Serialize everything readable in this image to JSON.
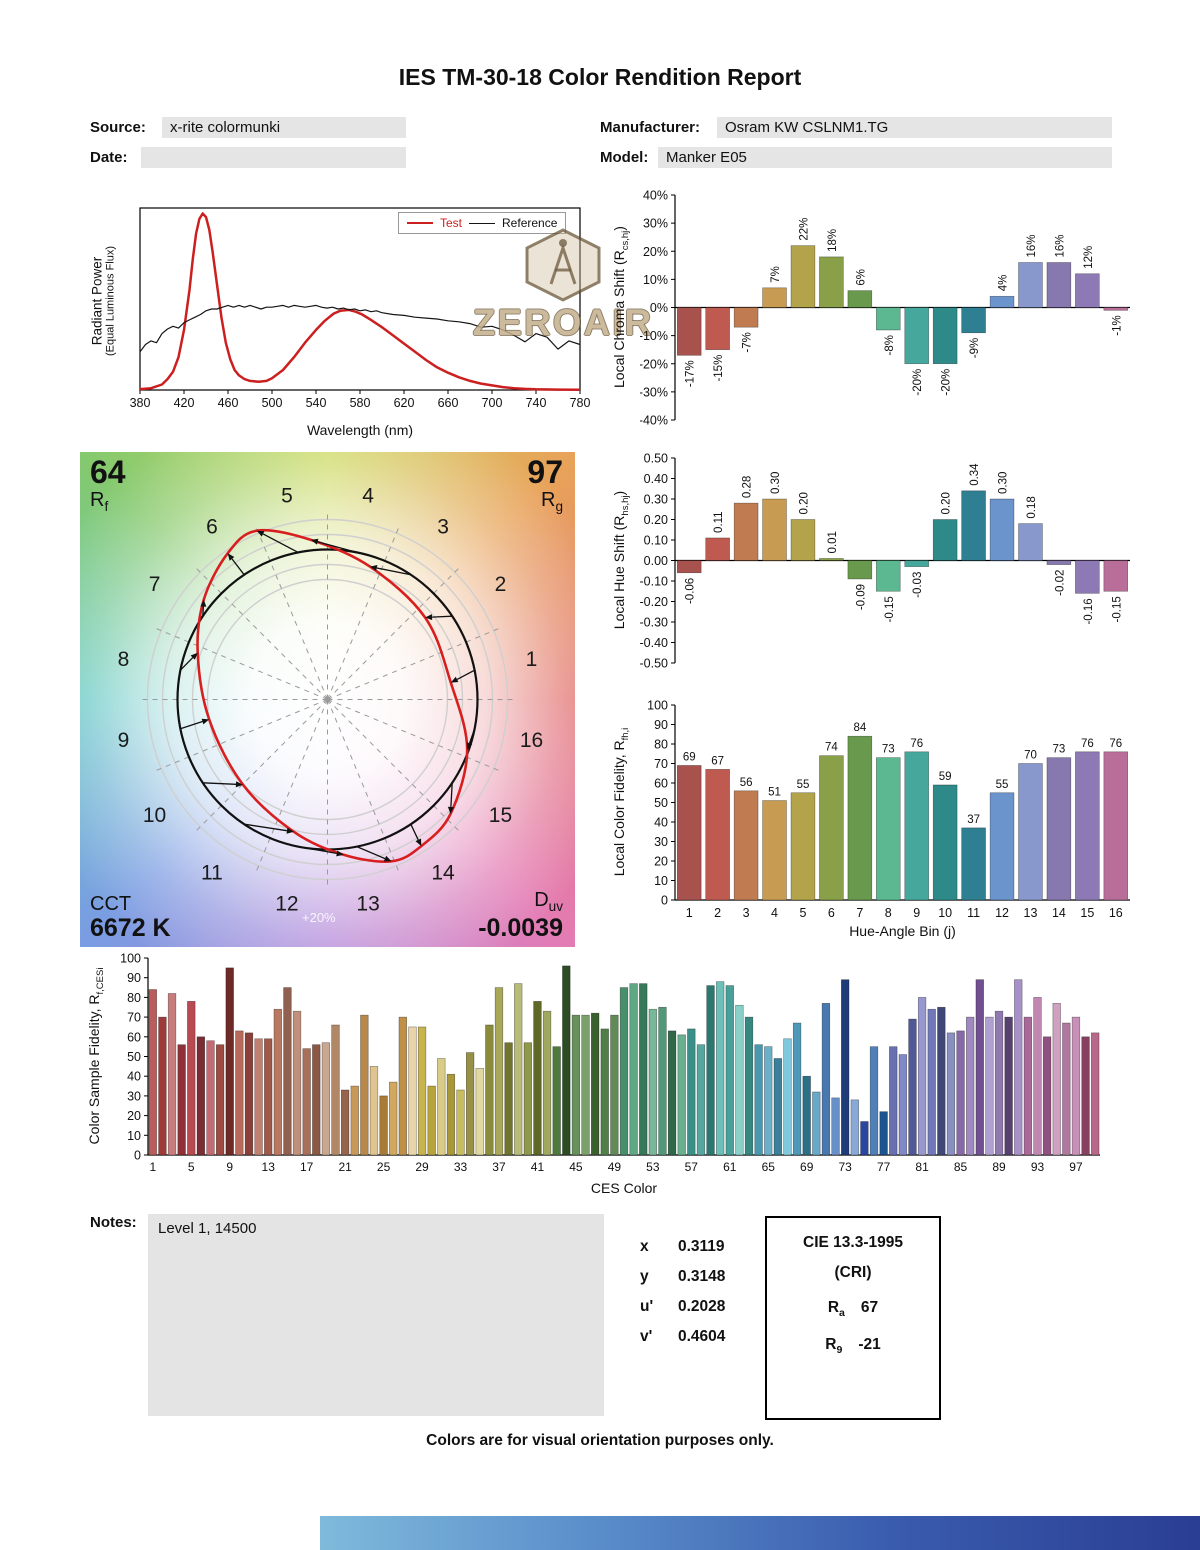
{
  "report": {
    "title": "IES TM-30-18 Color Rendition Report",
    "fields": {
      "source_label": "Source:",
      "source_value": "x-rite colormunki",
      "date_label": "Date:",
      "date_value": "",
      "manufacturer_label": "Manufacturer:",
      "manufacturer_value": "Osram KW CSLNM1.TG",
      "model_label": "Model:",
      "model_value": "Manker E05"
    },
    "notes_label": "Notes:",
    "notes_value": "Level 1, 14500",
    "watermark_text": "ZEROAIR",
    "footer": "Colors are for visual orientation purposes only."
  },
  "cvg": {
    "rf_value": "64",
    "rf_label_parts": [
      "R",
      "f"
    ],
    "rg_value": "97",
    "rg_label_parts": [
      "R",
      "g"
    ],
    "cct_label": "CCT",
    "cct_value": "6672 K",
    "duv_label_parts": [
      "D",
      "uv"
    ],
    "duv_value": "-0.0039",
    "ring_label": "+20%",
    "bin_numbers": [
      1,
      2,
      3,
      4,
      5,
      6,
      7,
      8,
      9,
      10,
      11,
      12,
      13,
      14,
      15,
      16
    ]
  },
  "chromaticity": {
    "rows": [
      {
        "label": "x",
        "value": "0.3119"
      },
      {
        "label": "y",
        "value": "0.3148"
      },
      {
        "label": "u'",
        "value": "0.2028"
      },
      {
        "label": "v'",
        "value": "0.4604"
      }
    ]
  },
  "cri": {
    "title": "CIE 13.3-1995",
    "subtitle": "(CRI)",
    "ra_label_parts": [
      "R",
      "a"
    ],
    "ra_value": "67",
    "r9_label_parts": [
      "R",
      "9"
    ],
    "r9_value": "-21"
  },
  "hue_bin_colors": [
    "#a8524e",
    "#bf5a50",
    "#c07c50",
    "#c79c52",
    "#b3a34b",
    "#8aa048",
    "#69994c",
    "#5cb890",
    "#46a89c",
    "#2e8a88",
    "#2f7f93",
    "#6b93cc",
    "#8898cc",
    "#8878b0",
    "#8d7ab5",
    "#b86e99"
  ],
  "chart_data": [
    {
      "type": "line",
      "name": "spectral-power-distribution",
      "xlabel": "Wavelength (nm)",
      "ylabel_lines": [
        "Radiant Power",
        "(Equal Luminous Flux)"
      ],
      "xlim": [
        380,
        780
      ],
      "ylim": [
        0,
        1
      ],
      "x_ticks": [
        380,
        420,
        460,
        500,
        540,
        580,
        620,
        660,
        700,
        740,
        780
      ],
      "legend_position": "top-right",
      "series": [
        {
          "name": "Test",
          "color": "#cc2020",
          "width": 2.5,
          "points": [
            [
              380,
              0.005
            ],
            [
              390,
              0.01
            ],
            [
              400,
              0.03
            ],
            [
              405,
              0.06
            ],
            [
              410,
              0.1
            ],
            [
              415,
              0.18
            ],
            [
              420,
              0.33
            ],
            [
              425,
              0.55
            ],
            [
              428,
              0.72
            ],
            [
              431,
              0.86
            ],
            [
              434,
              0.94
            ],
            [
              437,
              0.97
            ],
            [
              440,
              0.95
            ],
            [
              443,
              0.88
            ],
            [
              446,
              0.76
            ],
            [
              450,
              0.58
            ],
            [
              454,
              0.4
            ],
            [
              458,
              0.26
            ],
            [
              462,
              0.17
            ],
            [
              466,
              0.11
            ],
            [
              470,
              0.08
            ],
            [
              475,
              0.06
            ],
            [
              480,
              0.05
            ],
            [
              488,
              0.045
            ],
            [
              495,
              0.05
            ],
            [
              500,
              0.065
            ],
            [
              510,
              0.11
            ],
            [
              520,
              0.18
            ],
            [
              530,
              0.26
            ],
            [
              540,
              0.33
            ],
            [
              548,
              0.38
            ],
            [
              556,
              0.42
            ],
            [
              562,
              0.435
            ],
            [
              570,
              0.44
            ],
            [
              576,
              0.43
            ],
            [
              582,
              0.415
            ],
            [
              590,
              0.385
            ],
            [
              600,
              0.345
            ],
            [
              610,
              0.3
            ],
            [
              620,
              0.255
            ],
            [
              630,
              0.21
            ],
            [
              640,
              0.165
            ],
            [
              650,
              0.125
            ],
            [
              660,
              0.095
            ],
            [
              670,
              0.07
            ],
            [
              680,
              0.05
            ],
            [
              690,
              0.035
            ],
            [
              700,
              0.025
            ],
            [
              710,
              0.016
            ],
            [
              720,
              0.01
            ],
            [
              730,
              0.006
            ],
            [
              740,
              0.004
            ],
            [
              760,
              0.002
            ],
            [
              780,
              0.001
            ]
          ]
        },
        {
          "name": "Reference",
          "color": "#151515",
          "width": 1.2,
          "points": [
            [
              380,
              0.21
            ],
            [
              385,
              0.25
            ],
            [
              390,
              0.27
            ],
            [
              395,
              0.26
            ],
            [
              400,
              0.31
            ],
            [
              405,
              0.335
            ],
            [
              410,
              0.35
            ],
            [
              415,
              0.34
            ],
            [
              420,
              0.37
            ],
            [
              425,
              0.385
            ],
            [
              430,
              0.4
            ],
            [
              435,
              0.415
            ],
            [
              440,
              0.435
            ],
            [
              445,
              0.445
            ],
            [
              450,
              0.445
            ],
            [
              455,
              0.455
            ],
            [
              460,
              0.465
            ],
            [
              465,
              0.455
            ],
            [
              470,
              0.465
            ],
            [
              475,
              0.455
            ],
            [
              480,
              0.465
            ],
            [
              485,
              0.455
            ],
            [
              490,
              0.445
            ],
            [
              495,
              0.455
            ],
            [
              500,
              0.455
            ],
            [
              505,
              0.46
            ],
            [
              510,
              0.465
            ],
            [
              515,
              0.455
            ],
            [
              520,
              0.465
            ],
            [
              525,
              0.46
            ],
            [
              530,
              0.455
            ],
            [
              535,
              0.46
            ],
            [
              540,
              0.465
            ],
            [
              545,
              0.455
            ],
            [
              550,
              0.45
            ],
            [
              555,
              0.455
            ],
            [
              560,
              0.445
            ],
            [
              565,
              0.45
            ],
            [
              570,
              0.44
            ],
            [
              575,
              0.445
            ],
            [
              580,
              0.435
            ],
            [
              585,
              0.44
            ],
            [
              590,
              0.43
            ],
            [
              595,
              0.435
            ],
            [
              600,
              0.425
            ],
            [
              610,
              0.415
            ],
            [
              620,
              0.41
            ],
            [
              630,
              0.4
            ],
            [
              640,
              0.395
            ],
            [
              650,
              0.39
            ],
            [
              660,
              0.38
            ],
            [
              670,
              0.375
            ],
            [
              680,
              0.365
            ],
            [
              690,
              0.345
            ],
            [
              700,
              0.35
            ],
            [
              710,
              0.33
            ],
            [
              720,
              0.3
            ],
            [
              730,
              0.265
            ],
            [
              740,
              0.31
            ],
            [
              750,
              0.29
            ],
            [
              760,
              0.225
            ],
            [
              770,
              0.27
            ],
            [
              780,
              0.25
            ]
          ]
        }
      ]
    },
    {
      "type": "bar",
      "name": "local-chroma-shift",
      "ylabel_parts": [
        "Local Chroma Shift (R",
        "cs,hj",
        ")"
      ],
      "ylim": [
        -40,
        40
      ],
      "ytick_step": 10,
      "ytick_suffix": "%",
      "categories": [
        1,
        2,
        3,
        4,
        5,
        6,
        7,
        8,
        9,
        10,
        11,
        12,
        13,
        14,
        15,
        16
      ],
      "values": [
        -17,
        -15,
        -7,
        7,
        22,
        18,
        6,
        -8,
        -20,
        -20,
        -9,
        4,
        16,
        16,
        12,
        -1
      ],
      "value_labels": [
        "-17%",
        "-15%",
        "-7%",
        "7%",
        "22%",
        "18%",
        "6%",
        "-8%",
        "-20%",
        "-20%",
        "-9%",
        "4%",
        "16%",
        "16%",
        "12%",
        "-1%"
      ]
    },
    {
      "type": "bar",
      "name": "local-hue-shift",
      "ylabel_parts": [
        "Local Hue Shift (R",
        "hs,hj",
        ")"
      ],
      "ylim": [
        -0.5,
        0.5
      ],
      "ytick_step": 0.1,
      "ytick_decimals": 2,
      "categories": [
        1,
        2,
        3,
        4,
        5,
        6,
        7,
        8,
        9,
        10,
        11,
        12,
        13,
        14,
        15,
        16
      ],
      "values": [
        -0.06,
        0.11,
        0.28,
        0.3,
        0.2,
        0.01,
        -0.09,
        -0.15,
        -0.03,
        0.2,
        0.34,
        0.3,
        0.18,
        -0.02,
        -0.16,
        -0.15
      ],
      "value_labels": [
        "-0.06",
        "0.11",
        "0.28",
        "0.30",
        "0.20",
        "0.01",
        "-0.09",
        "-0.15",
        "-0.03",
        "0.20",
        "0.34",
        "0.30",
        "0.18",
        "-0.02",
        "-0.16",
        "-0.15"
      ]
    },
    {
      "type": "bar",
      "name": "local-color-fidelity",
      "xlabel": "Hue-Angle Bin (j)",
      "ylabel_parts": [
        "Local Color Fidelity, R",
        "fh,i",
        ""
      ],
      "ylim": [
        0,
        100
      ],
      "ytick_step": 10,
      "categories": [
        1,
        2,
        3,
        4,
        5,
        6,
        7,
        8,
        9,
        10,
        11,
        12,
        13,
        14,
        15,
        16
      ],
      "values": [
        69,
        67,
        56,
        51,
        55,
        74,
        84,
        73,
        76,
        59,
        37,
        55,
        70,
        73,
        76,
        76
      ],
      "value_labels": [
        "69",
        "67",
        "56",
        "51",
        "55",
        "74",
        "84",
        "73",
        "76",
        "59",
        "37",
        "55",
        "70",
        "73",
        "76",
        "76"
      ]
    },
    {
      "type": "bar",
      "name": "color-sample-fidelity",
      "xlabel": "CES Color",
      "ylabel_parts": [
        "Color Sample Fidelity, R",
        "f,CESi",
        ""
      ],
      "ylim": [
        0,
        100
      ],
      "ytick_step": 10,
      "x_tick_labels": [
        1,
        5,
        9,
        13,
        17,
        21,
        25,
        29,
        33,
        37,
        41,
        45,
        49,
        53,
        57,
        61,
        65,
        69,
        73,
        77,
        81,
        85,
        89,
        93,
        97
      ],
      "values": [
        84,
        70,
        82,
        56,
        78,
        60,
        58,
        56,
        95,
        63,
        62,
        59,
        59,
        74,
        85,
        73,
        54,
        56,
        57,
        66,
        33,
        35,
        71,
        45,
        30,
        37,
        70,
        65,
        65,
        35,
        49,
        41,
        33,
        52,
        44,
        66,
        85,
        57,
        87,
        57,
        78,
        73,
        55,
        96,
        71,
        71,
        72,
        64,
        71,
        85,
        87,
        87,
        74,
        75,
        63,
        61,
        64,
        56,
        86,
        88,
        86,
        76,
        70,
        56,
        55,
        49,
        59,
        67,
        40,
        32,
        77,
        29,
        89,
        28,
        17,
        55,
        22,
        55,
        51,
        69,
        80,
        74,
        75,
        62,
        63,
        70,
        89,
        70,
        73,
        70,
        89,
        70,
        80,
        60,
        77,
        67,
        70,
        60,
        62
      ],
      "colors": [
        "#b85c5c",
        "#9e3a3a",
        "#c97c7c",
        "#8f3038",
        "#b84a52",
        "#7a2e34",
        "#c46a72",
        "#9c4a42",
        "#6e2a26",
        "#b86a5a",
        "#8a4038",
        "#c08070",
        "#a05848",
        "#b87862",
        "#906050",
        "#c0907c",
        "#a87058",
        "#8a5844",
        "#c8a890",
        "#b08868",
        "#96644c",
        "#c89858",
        "#b8884a",
        "#e0c490",
        "#a87c38",
        "#d0a860",
        "#c09048",
        "#e8d4a8",
        "#c8b44c",
        "#b8a43c",
        "#d8cc88",
        "#a89838",
        "#c8bc60",
        "#989044",
        "#e0d8a0",
        "#8a8c3c",
        "#a8a858",
        "#70742c",
        "#b8bc78",
        "#90984c",
        "#606828",
        "#a0a860",
        "#4e7a3e",
        "#2c4c24",
        "#68905a",
        "#7aa06c",
        "#3a6030",
        "#508048",
        "#628a56",
        "#48906c",
        "#60a884",
        "#38785a",
        "#78b898",
        "#509878",
        "#2e6848",
        "#68b090",
        "#3a9088",
        "#54a8a0",
        "#2a7870",
        "#6cc0b8",
        "#48a098",
        "#88d0c8",
        "#348880",
        "#4898b0",
        "#6ab0c8",
        "#3a8098",
        "#80c8dc",
        "#5098b8",
        "#2c7088",
        "#68a8c8",
        "#4878b0",
        "#6890c8",
        "#203c78",
        "#88a8d8",
        "#2848a0",
        "#5080b8",
        "#1c5490",
        "#6870b0",
        "#8088c8",
        "#505898",
        "#9898d0",
        "#7078b8",
        "#404878",
        "#8890c0",
        "#8868a8",
        "#a088c0",
        "#705090",
        "#b0a0d0",
        "#9078b0",
        "#584070",
        "#a890c8",
        "#a86898",
        "#c088b0",
        "#905080",
        "#d0a0c0",
        "#b078a0",
        "#c890b8",
        "#884060",
        "#b86888"
      ]
    }
  ]
}
